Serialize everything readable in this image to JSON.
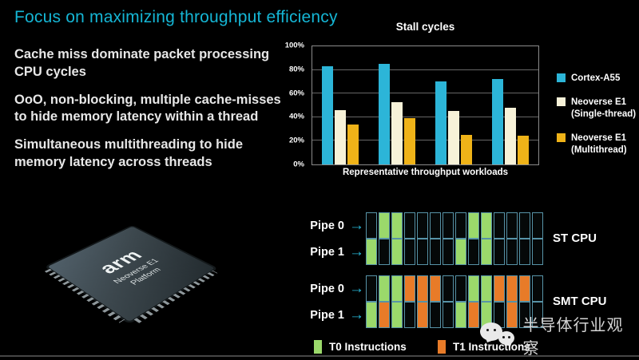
{
  "slide": {
    "title": "Focus on maximizing throughput efficiency",
    "bullets": [
      "Cache miss dominate packet processing CPU cycles",
      "OoO, non-blocking, multiple cache-misses to hide memory latency within a thread",
      "Simultaneous multithreading to hide memory latency across threads"
    ]
  },
  "icons": {
    "arrow_right": "→"
  },
  "chip": {
    "logo": "arm",
    "caption": [
      "Neoverse E1",
      "Platform"
    ]
  },
  "chart_data": {
    "type": "bar",
    "title": "Stall cycles",
    "xlabel": "Representative throughput workloads",
    "ylabel": "",
    "ylim": [
      0,
      100
    ],
    "yticks": [
      0,
      20,
      40,
      60,
      80,
      100
    ],
    "ytick_suffix": "%",
    "grid": true,
    "legend_position": "right",
    "categories": [
      "",
      "",
      "",
      ""
    ],
    "series": [
      {
        "name": "Cortex-A55",
        "legend_lines": [
          "Cortex-A55"
        ],
        "color": "#2cb5d8",
        "values": [
          83,
          85,
          70,
          72
        ]
      },
      {
        "name": "Neoverse E1 (Single-thread)",
        "legend_lines": [
          "Neoverse E1",
          "(Single-thread)"
        ],
        "color": "#f7f2d8",
        "values": [
          46,
          53,
          45,
          48
        ]
      },
      {
        "name": "Neoverse E1 (Multithread)",
        "legend_lines": [
          "Neoverse E1",
          "(Multithread)"
        ],
        "color": "#efb318",
        "values": [
          34,
          39,
          25,
          24
        ]
      }
    ]
  },
  "pipelines": {
    "cell_colors": {
      "g": "#9bd96b",
      "o": "#e87b28",
      "k": "#050808"
    },
    "diagrams": [
      {
        "name": "ST CPU",
        "rows": [
          {
            "label": "Pipe 0",
            "cells": [
              "k",
              "g",
              "g",
              "k",
              "k",
              "k",
              "k",
              "k",
              "g",
              "g",
              "k",
              "k",
              "k",
              "k"
            ]
          },
          {
            "label": "Pipe 1",
            "cells": [
              "g",
              "k",
              "g",
              "k",
              "k",
              "k",
              "k",
              "g",
              "k",
              "g",
              "k",
              "k",
              "k",
              "k"
            ]
          }
        ]
      },
      {
        "name": "SMT CPU",
        "rows": [
          {
            "label": "Pipe 0",
            "cells": [
              "k",
              "g",
              "g",
              "o",
              "o",
              "o",
              "k",
              "k",
              "g",
              "g",
              "o",
              "o",
              "o",
              "k"
            ]
          },
          {
            "label": "Pipe 1",
            "cells": [
              "g",
              "o",
              "g",
              "k",
              "o",
              "k",
              "k",
              "g",
              "o",
              "g",
              "k",
              "o",
              "k",
              "k"
            ]
          }
        ]
      }
    ],
    "legend": [
      {
        "label": "T0 Instructions",
        "color": "#9bd96b"
      },
      {
        "label": "T1 Instructions",
        "color": "#e87b28"
      }
    ]
  },
  "watermark": {
    "text": "半导体行业观察"
  }
}
